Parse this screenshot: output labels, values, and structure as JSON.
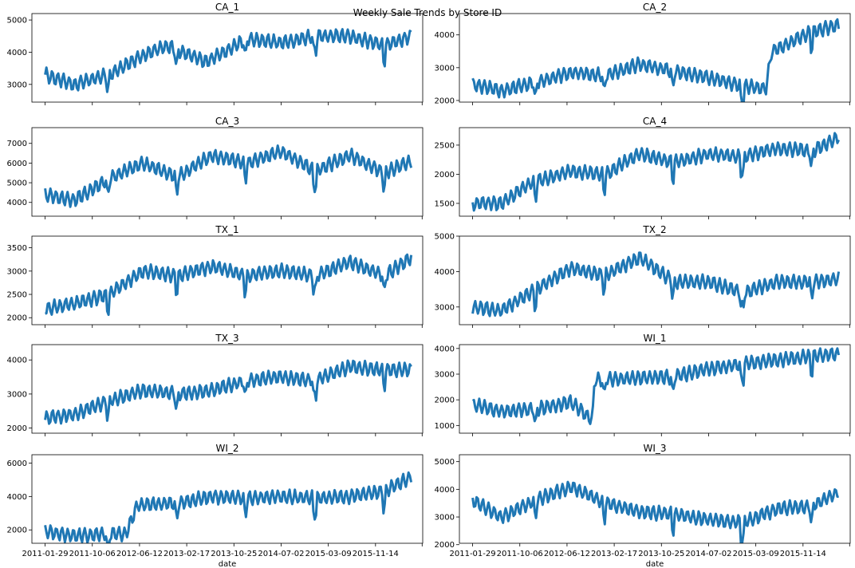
{
  "figure": {
    "title": "Weekly Sale Trends by Store ID",
    "x_ticks": [
      "2011-01-29",
      "2011-10-06",
      "2012-06-12",
      "2013-02-17",
      "2013-10-25",
      "2014-07-02",
      "2015-03-09",
      "2015-11-14"
    ],
    "x_label": "date",
    "line_color": "#1f77b4"
  },
  "chart_data": [
    {
      "type": "line",
      "title": "CA_1",
      "ylim": [
        2450,
        5200
      ],
      "yticks": [
        3000,
        4000,
        5000
      ],
      "series": [
        {
          "x": [
            "2011-01-29",
            "2011-07-01",
            "2012-01-01",
            "2012-07-01",
            "2012-11-01",
            "2013-06-01",
            "2014-01-01",
            "2014-07-01",
            "2015-01-01",
            "2015-07-01",
            "2016-01-01",
            "2016-05-22"
          ],
          "values": [
            3300,
            3000,
            3300,
            3900,
            4200,
            3700,
            4400,
            4300,
            4500,
            4500,
            4200,
            4500
          ]
        }
      ]
    },
    {
      "type": "line",
      "title": "CA_2",
      "ylim": [
        1950,
        4650
      ],
      "yticks": [
        2000,
        3000,
        4000
      ],
      "series": [
        {
          "x": [
            "2011-01-29",
            "2011-07-01",
            "2012-01-01",
            "2012-07-01",
            "2013-01-01",
            "2013-07-01",
            "2014-01-01",
            "2014-07-01",
            "2015-01-01",
            "2015-05-01",
            "2015-06-01",
            "2016-01-01",
            "2016-05-22"
          ],
          "values": [
            2500,
            2300,
            2550,
            2850,
            2750,
            3100,
            2900,
            2700,
            2450,
            2350,
            3500,
            4100,
            4300
          ]
        }
      ]
    },
    {
      "type": "line",
      "title": "CA_3",
      "ylim": [
        3300,
        7800
      ],
      "yticks": [
        4000,
        5000,
        6000,
        7000
      ],
      "series": [
        {
          "x": [
            "2011-01-29",
            "2011-07-01",
            "2012-01-01",
            "2012-07-01",
            "2013-01-01",
            "2013-07-01",
            "2014-01-01",
            "2014-07-01",
            "2015-01-01",
            "2015-07-01",
            "2016-01-01",
            "2016-05-22"
          ],
          "values": [
            4400,
            4100,
            5200,
            6000,
            5300,
            6400,
            6000,
            6600,
            5600,
            6400,
            5500,
            6100
          ]
        }
      ]
    },
    {
      "type": "line",
      "title": "CA_4",
      "ylim": [
        1280,
        2800
      ],
      "yticks": [
        1500,
        2000,
        2500
      ],
      "series": [
        {
          "x": [
            "2011-01-29",
            "2011-07-01",
            "2011-12-01",
            "2012-07-01",
            "2013-01-01",
            "2013-07-01",
            "2014-01-01",
            "2014-07-01",
            "2015-01-01",
            "2015-07-01",
            "2016-01-01",
            "2016-05-22"
          ],
          "values": [
            1500,
            1500,
            1850,
            2050,
            2000,
            2350,
            2200,
            2350,
            2300,
            2450,
            2400,
            2650
          ]
        }
      ]
    },
    {
      "type": "line",
      "title": "TX_1",
      "ylim": [
        1850,
        3750
      ],
      "yticks": [
        2000,
        2500,
        3000,
        3500
      ],
      "series": [
        {
          "x": [
            "2011-01-29",
            "2011-07-01",
            "2012-01-01",
            "2012-07-01",
            "2013-01-01",
            "2013-07-01",
            "2014-01-01",
            "2014-07-01",
            "2015-01-01",
            "2015-07-01",
            "2016-01-01",
            "2016-05-22"
          ],
          "values": [
            2200,
            2300,
            2500,
            3000,
            2900,
            3100,
            2900,
            3000,
            2900,
            3200,
            2900,
            3300
          ]
        }
      ]
    },
    {
      "type": "line",
      "title": "TX_2",
      "ylim": [
        2500,
        5000
      ],
      "yticks": [
        3000,
        4000,
        5000
      ],
      "series": [
        {
          "x": [
            "2011-01-29",
            "2011-07-01",
            "2012-01-01",
            "2012-07-01",
            "2013-01-01",
            "2013-07-01",
            "2014-01-01",
            "2014-07-01",
            "2015-01-01",
            "2015-07-01",
            "2016-01-01",
            "2016-05-22"
          ],
          "values": [
            3000,
            2900,
            3500,
            4100,
            3900,
            4400,
            3700,
            3700,
            3400,
            3700,
            3700,
            3800
          ]
        }
      ]
    },
    {
      "type": "line",
      "title": "TX_3",
      "ylim": [
        1850,
        4450
      ],
      "yticks": [
        2000,
        3000,
        4000
      ],
      "series": [
        {
          "x": [
            "2011-01-29",
            "2011-07-01",
            "2012-01-01",
            "2012-07-01",
            "2013-01-01",
            "2013-07-01",
            "2014-01-01",
            "2014-07-01",
            "2015-01-01",
            "2015-07-01",
            "2016-01-01",
            "2016-05-22"
          ],
          "values": [
            2300,
            2400,
            2800,
            3100,
            3000,
            3100,
            3400,
            3500,
            3400,
            3800,
            3700,
            3700
          ]
        }
      ]
    },
    {
      "type": "line",
      "title": "WI_1",
      "ylim": [
        700,
        4150
      ],
      "yticks": [
        1000,
        2000,
        3000,
        4000
      ],
      "series": [
        {
          "x": [
            "2011-01-29",
            "2011-07-01",
            "2012-01-01",
            "2012-07-01",
            "2012-10-25",
            "2012-11-05",
            "2013-03-01",
            "2013-07-01",
            "2014-01-01",
            "2014-07-01",
            "2015-01-01",
            "2015-07-01",
            "2016-01-01",
            "2016-05-22"
          ],
          "values": [
            1800,
            1550,
            1650,
            1900,
            1200,
            2800,
            2800,
            2850,
            2900,
            3200,
            3400,
            3550,
            3700,
            3800
          ]
        }
      ]
    },
    {
      "type": "line",
      "title": "WI_2",
      "ylim": [
        1200,
        6500
      ],
      "yticks": [
        2000,
        4000,
        6000
      ],
      "series": [
        {
          "x": [
            "2011-01-29",
            "2011-07-01",
            "2012-01-01",
            "2012-04-01",
            "2012-06-01",
            "2013-01-01",
            "2013-07-01",
            "2014-01-01",
            "2014-07-01",
            "2015-01-01",
            "2015-07-01",
            "2016-01-01",
            "2016-05-22"
          ],
          "values": [
            1900,
            1650,
            1750,
            1750,
            3500,
            3600,
            4000,
            3900,
            4000,
            3900,
            4000,
            4300,
            5200
          ]
        }
      ]
    },
    {
      "type": "line",
      "title": "WI_3",
      "ylim": [
        2050,
        5250
      ],
      "yticks": [
        2000,
        3000,
        4000,
        5000
      ],
      "series": [
        {
          "x": [
            "2011-01-29",
            "2011-07-01",
            "2012-01-01",
            "2012-07-01",
            "2013-01-01",
            "2013-07-01",
            "2014-01-01",
            "2014-07-01",
            "2015-01-01",
            "2015-07-01",
            "2016-01-01",
            "2016-05-22"
          ],
          "values": [
            3600,
            3000,
            3600,
            4100,
            3500,
            3200,
            3100,
            2900,
            2800,
            3300,
            3400,
            3900
          ]
        }
      ]
    }
  ]
}
